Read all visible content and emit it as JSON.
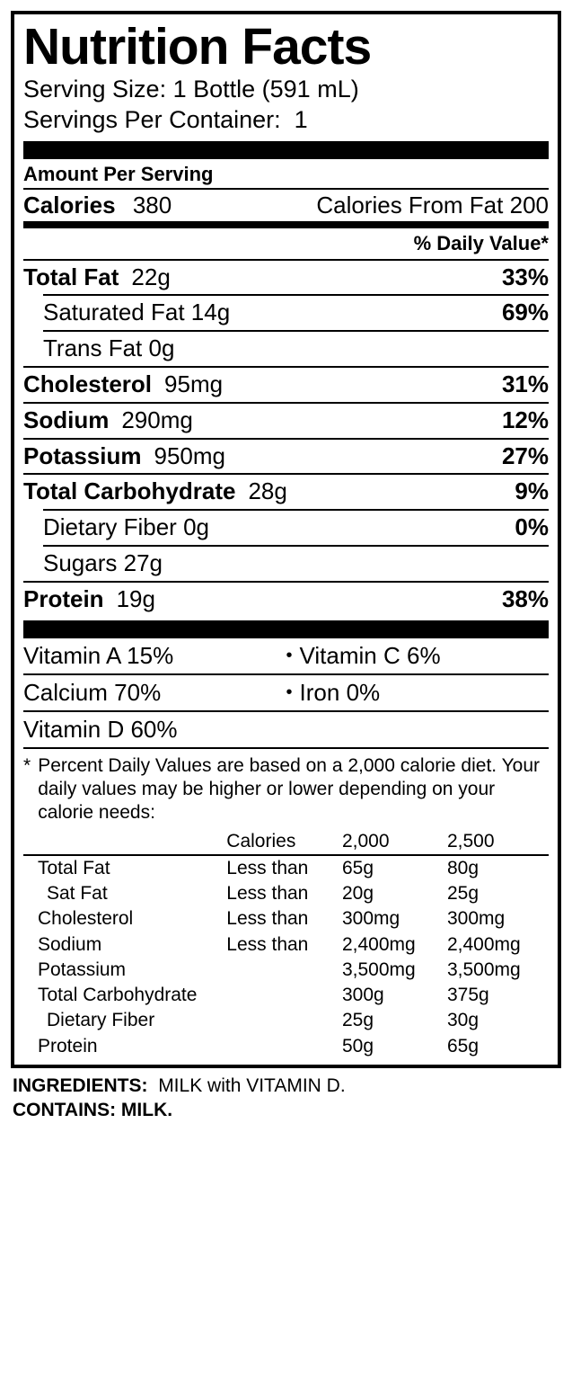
{
  "title": "Nutrition Facts",
  "serving_size_label": "Serving Size:",
  "serving_size_value": "1 Bottle (591 mL)",
  "servings_per_label": "Servings Per Container:",
  "servings_per_value": "1",
  "amount_per_serving": "Amount Per Serving",
  "calories_label": "Calories",
  "calories_value": "380",
  "calories_fat_label": "Calories From Fat",
  "calories_fat_value": "200",
  "dv_heading": "% Daily Value*",
  "nutrients": {
    "total_fat": {
      "label": "Total Fat",
      "amount": "22g",
      "dv": "33%"
    },
    "sat_fat": {
      "label": "Saturated Fat",
      "amount": "14g",
      "dv": "69%"
    },
    "trans_fat": {
      "label": "Trans Fat",
      "amount": "0g",
      "dv": ""
    },
    "cholesterol": {
      "label": "Cholesterol",
      "amount": "95mg",
      "dv": "31%"
    },
    "sodium": {
      "label": "Sodium",
      "amount": "290mg",
      "dv": "12%"
    },
    "potassium": {
      "label": "Potassium",
      "amount": "950mg",
      "dv": "27%"
    },
    "total_carb": {
      "label": "Total Carbohydrate",
      "amount": "28g",
      "dv": "9%"
    },
    "fiber": {
      "label": "Dietary Fiber",
      "amount": "0g",
      "dv": "0%"
    },
    "sugars": {
      "label": "Sugars",
      "amount": "27g",
      "dv": ""
    },
    "protein": {
      "label": "Protein",
      "amount": "19g",
      "dv": "38%"
    }
  },
  "vitamins": {
    "a": {
      "label": "Vitamin A",
      "value": "15%"
    },
    "c": {
      "label": "Vitamin C",
      "value": "6%"
    },
    "cal": {
      "label": "Calcium",
      "value": "70%"
    },
    "ir": {
      "label": "Iron",
      "value": "0%"
    },
    "d": {
      "label": "Vitamin D",
      "value": "60%"
    }
  },
  "footnote_star": "*",
  "footnote_text": "Percent Daily Values are based on a 2,000 calorie diet. Your daily values may be higher or lower depending on your calorie needs:",
  "ref_header": {
    "c1": "",
    "c2": "Calories",
    "c3": "2,000",
    "c4": "2,500"
  },
  "ref_rows": [
    {
      "c1": "Total Fat",
      "c2": "Less than",
      "c3": "65g",
      "c4": "80g",
      "indent": false
    },
    {
      "c1": "Sat Fat",
      "c2": "Less than",
      "c3": "20g",
      "c4": "25g",
      "indent": true
    },
    {
      "c1": "Cholesterol",
      "c2": "Less than",
      "c3": "300mg",
      "c4": "300mg",
      "indent": false
    },
    {
      "c1": "Sodium",
      "c2": "Less than",
      "c3": "2,400mg",
      "c4": "2,400mg",
      "indent": false
    },
    {
      "c1": "Potassium",
      "c2": "",
      "c3": "3,500mg",
      "c4": "3,500mg",
      "indent": false
    },
    {
      "c1": "Total Carbohydrate",
      "c2": "",
      "c3": "300g",
      "c4": "375g",
      "indent": false
    },
    {
      "c1": "Dietary Fiber",
      "c2": "",
      "c3": "25g",
      "c4": "30g",
      "indent": true
    },
    {
      "c1": "Protein",
      "c2": "",
      "c3": "50g",
      "c4": "65g",
      "indent": false
    }
  ],
  "ingredients_label": "INGREDIENTS:",
  "ingredients_text": "MILK with VITAMIN D.",
  "contains_text": "CONTAINS: MILK."
}
